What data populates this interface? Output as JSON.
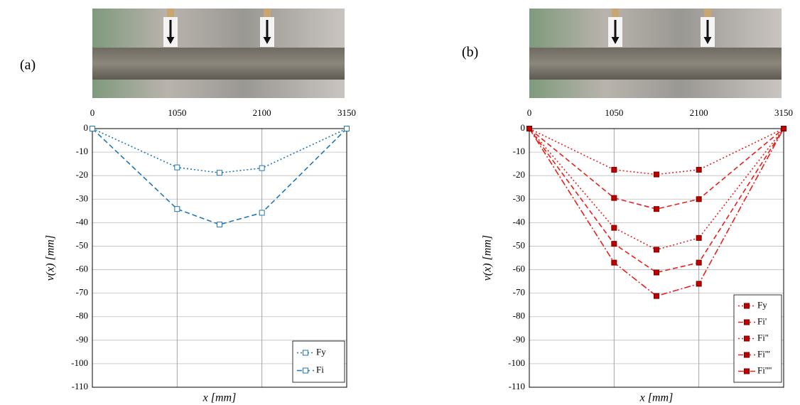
{
  "chart_data": [
    {
      "type": "line",
      "panel_label": "(a)",
      "x_label": "x [mm]",
      "y_label": "v(x) [mm]",
      "x": [
        0,
        1050,
        1575,
        2100,
        3150
      ],
      "xlim": [
        0,
        3150
      ],
      "xticks": [
        0,
        1050,
        2100,
        3150
      ],
      "ylim": [
        -110,
        0
      ],
      "yticks": [
        0,
        -10,
        -20,
        -30,
        -40,
        -50,
        -60,
        -70,
        -80,
        -90,
        -100,
        -110
      ],
      "grid": true,
      "legend": "lower right",
      "marker_filled": false,
      "series": [
        {
          "name": "Fy",
          "color": "#1f77b4",
          "dash": "dotted",
          "values": [
            0,
            -16.5,
            -18.8,
            -16.8,
            0
          ]
        },
        {
          "name": "Fi",
          "color": "#1f77b4",
          "dash": "dashed",
          "values": [
            0,
            -34.2,
            -40.8,
            -35.8,
            0
          ]
        }
      ]
    },
    {
      "type": "line",
      "panel_label": "(b)",
      "x_label": "x [mm]",
      "y_label": "v(x) [mm]",
      "x": [
        0,
        1050,
        1575,
        2100,
        3150
      ],
      "xlim": [
        0,
        3150
      ],
      "xticks": [
        0,
        1050,
        2100,
        3150
      ],
      "ylim": [
        -110,
        0
      ],
      "yticks": [
        0,
        -10,
        -20,
        -30,
        -40,
        -50,
        -60,
        -70,
        -80,
        -90,
        -100,
        -110
      ],
      "grid": true,
      "legend": "lower right",
      "marker_filled": true,
      "series": [
        {
          "name": "Fy",
          "color": "#e8201c",
          "dash": "dotted",
          "values": [
            0,
            -17.5,
            -19.5,
            -17.5,
            0
          ]
        },
        {
          "name": "Fi'",
          "color": "#e8201c",
          "dash": "dashed",
          "values": [
            0,
            -29.5,
            -34.2,
            -30,
            0
          ]
        },
        {
          "name": "Fi''",
          "color": "#e8201c",
          "dash": "dotted",
          "values": [
            0,
            -42.2,
            -51.5,
            -46.5,
            0
          ]
        },
        {
          "name": "Fi'''",
          "color": "#e8201c",
          "dash": "dashed",
          "values": [
            0,
            -49,
            -61.2,
            -57,
            0
          ]
        },
        {
          "name": "Fi''''",
          "color": "#e8201c",
          "dash": "dashdot",
          "values": [
            0,
            -57,
            -71.2,
            -66,
            0
          ]
        }
      ]
    }
  ]
}
